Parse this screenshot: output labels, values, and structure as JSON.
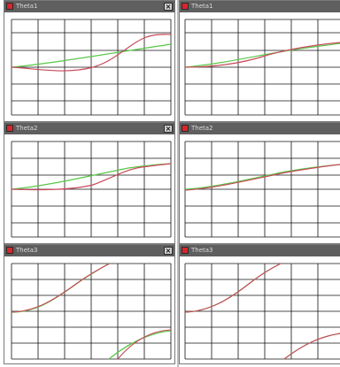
{
  "panels": [
    {
      "title": "Theta1",
      "close_label": "×"
    },
    {
      "title": "Theta1",
      "close_label": "×"
    },
    {
      "title": "Theta2",
      "close_label": "×"
    },
    {
      "title": "Theta2",
      "close_label": "×"
    },
    {
      "title": "Theta3",
      "close_label": "×"
    },
    {
      "title": "Theta3",
      "close_label": "×"
    }
  ],
  "colors": {
    "green_series": "#58c848",
    "red_series": "#c84a5a",
    "grid": "#111111",
    "titlebar": "#5f5f5f"
  }
}
